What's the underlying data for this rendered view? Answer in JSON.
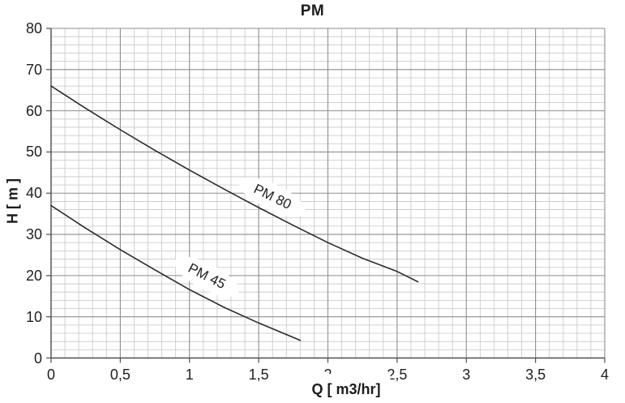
{
  "chart_data": {
    "type": "line",
    "title": "PM",
    "xlabel": "Q [ m3/hr]",
    "ylabel": "H [ m ]",
    "xlim": [
      0,
      4
    ],
    "ylim": [
      0,
      80
    ],
    "x_ticks": {
      "values": [
        0,
        0.5,
        1,
        1.5,
        2,
        2.5,
        3,
        3.5,
        4
      ],
      "labels": [
        "0",
        "0,5",
        "1",
        "1,5",
        "2",
        "2,5",
        "3",
        "3,5",
        "4"
      ]
    },
    "y_ticks": {
      "values": [
        0,
        10,
        20,
        30,
        40,
        50,
        60,
        70,
        80
      ],
      "labels": [
        "0",
        "10",
        "20",
        "30",
        "40",
        "50",
        "60",
        "70",
        "80"
      ]
    },
    "grid": {
      "minor_x_step": 0.1,
      "minor_y_step": 2,
      "major_x_step": 0.5,
      "major_y_step": 10,
      "minor_color": "#c6c6c6",
      "major_color": "#8e8e8e",
      "axis_color": "#4f4f4f"
    },
    "series": [
      {
        "name": "PM 80",
        "color": "#2b2b2b",
        "points": [
          [
            0,
            66
          ],
          [
            0.25,
            60.6
          ],
          [
            0.5,
            55.4
          ],
          [
            0.75,
            50.4
          ],
          [
            1.0,
            45.6
          ],
          [
            1.25,
            41.0
          ],
          [
            1.5,
            36.5
          ],
          [
            1.75,
            32.2
          ],
          [
            2.0,
            28.0
          ],
          [
            2.25,
            24.2
          ],
          [
            2.5,
            21.0
          ],
          [
            2.65,
            18.5
          ]
        ]
      },
      {
        "name": "PM 45",
        "color": "#2b2b2b",
        "points": [
          [
            0,
            37
          ],
          [
            0.25,
            31.5
          ],
          [
            0.5,
            26.3
          ],
          [
            0.75,
            21.4
          ],
          [
            1.0,
            16.6
          ],
          [
            1.25,
            12.3
          ],
          [
            1.5,
            8.5
          ],
          [
            1.75,
            5.0
          ],
          [
            1.8,
            4.3
          ]
        ]
      }
    ],
    "legend_position": "labels-on-curves"
  }
}
